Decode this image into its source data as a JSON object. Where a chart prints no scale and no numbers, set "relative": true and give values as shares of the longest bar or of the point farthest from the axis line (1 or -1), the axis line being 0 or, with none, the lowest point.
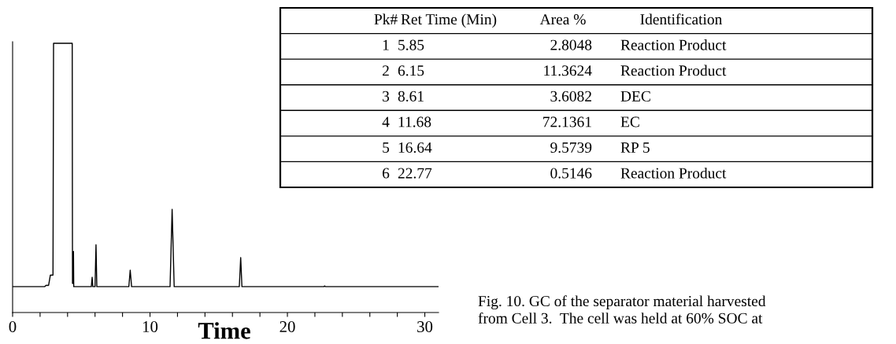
{
  "chart_data": {
    "type": "line",
    "relative": true,
    "xlabel": "Time",
    "x": [
      0,
      2.33,
      2.43,
      2.62,
      2.75,
      2.94,
      2.98,
      4.34,
      4.36,
      4.38,
      4.43,
      4.45,
      5.73,
      5.79,
      5.84,
      6.0,
      6.07,
      6.13,
      8.46,
      8.56,
      8.66,
      11.46,
      11.61,
      11.76,
      16.5,
      16.6,
      16.69,
      22.65,
      22.71,
      22.77,
      31.0
    ],
    "series": [
      {
        "color": "#000000",
        "values": [
          0.096,
          0.096,
          0.101,
          0.101,
          0.139,
          0.139,
          1.0,
          1.0,
          0.108,
          0.108,
          0.227,
          0.096,
          0.096,
          0.131,
          0.096,
          0.096,
          0.252,
          0.096,
          0.096,
          0.157,
          0.096,
          0.096,
          0.383,
          0.096,
          0.096,
          0.204,
          0.096,
          0.096,
          0.099,
          0.096,
          0.096
        ]
      }
    ],
    "xlim": [
      0,
      31
    ],
    "xticks": [
      0,
      {
        "value": 2,
        "label": null
      },
      {
        "value": 4,
        "label": null
      },
      {
        "value": 6,
        "label": null
      },
      {
        "value": 8,
        "label": null
      },
      10,
      {
        "value": 12,
        "label": null
      },
      {
        "value": 14,
        "label": null
      },
      {
        "value": 16,
        "label": null
      },
      {
        "value": 18,
        "label": null
      },
      20,
      {
        "value": 22,
        "label": null
      },
      {
        "value": 24,
        "label": null
      },
      {
        "value": 26,
        "label": null
      },
      {
        "value": 28,
        "label": null
      },
      30
    ],
    "grid": false,
    "legend": false,
    "marker": "none",
    "line_style": "solid",
    "annotations": [
      "Pk#",
      "Ret Time (Min)",
      "Area %",
      "Identification",
      "1",
      "5.85",
      "2.8048",
      "Reaction Product",
      "2",
      "6.15",
      "11.3624",
      "Reaction Product",
      "3",
      "8.61",
      "3.6082",
      "DEC",
      "4",
      "11.68",
      "72.1361",
      "EC",
      "5",
      "16.64",
      "9.5739",
      "RP 5",
      "6",
      "22.77",
      "0.5146",
      "Reaction Product",
      "Fig. 10. GC of the separator material harvested from Cell 3.  The cell was held at 60% SOC at"
    ]
  }
}
